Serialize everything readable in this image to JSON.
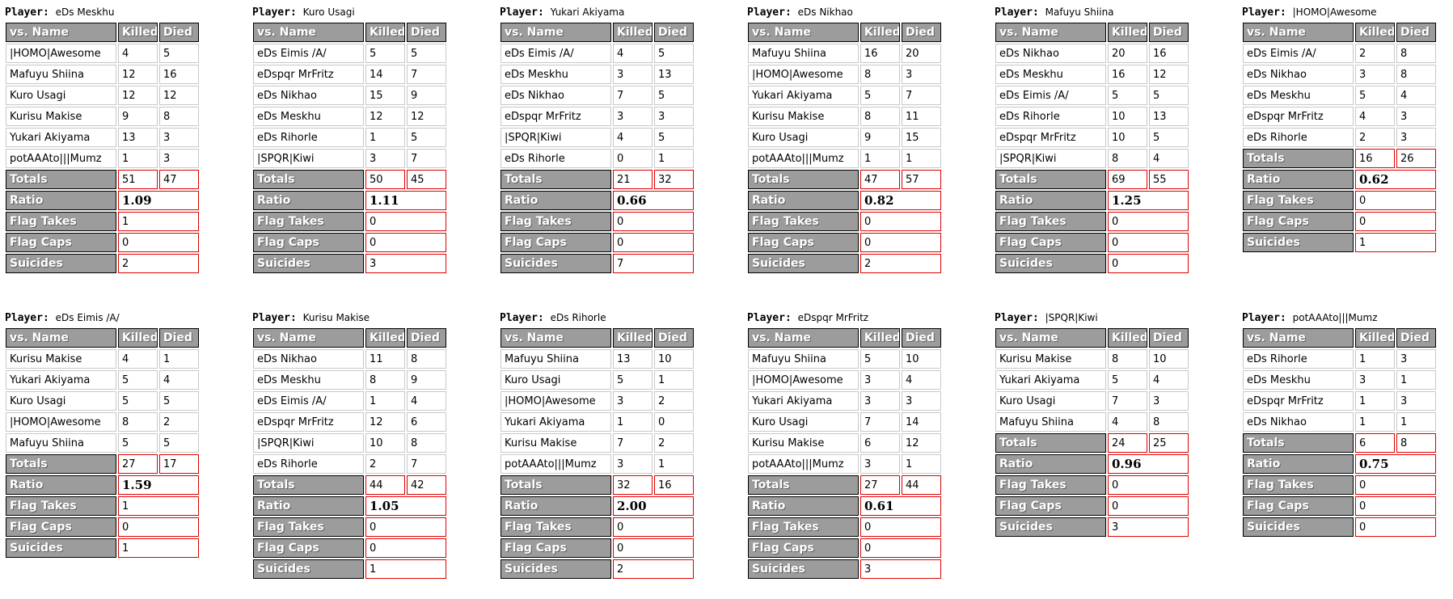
{
  "labels": {
    "player_prefix": "Player:",
    "columns": [
      "vs. Name",
      "Killed",
      "Died"
    ],
    "totals": "Totals",
    "ratio": "Ratio",
    "flag_takes": "Flag Takes",
    "flag_caps": "Flag Caps",
    "suicides": "Suicides"
  },
  "colors": {
    "header_bg": "#9c9c9c",
    "header_border": "#000000",
    "data_cell_border": "#c8c8c8",
    "highlight_border": "#dd0000",
    "text": "#000000",
    "header_text": "#ffffff"
  },
  "players": [
    {
      "name": "eDs Meskhu",
      "opponents": [
        {
          "name": "|HOMO|Awesome",
          "killed": 4,
          "died": 5
        },
        {
          "name": "Mafuyu Shiina",
          "killed": 12,
          "died": 16
        },
        {
          "name": "Kuro Usagi",
          "killed": 12,
          "died": 12
        },
        {
          "name": "Kurisu Makise",
          "killed": 9,
          "died": 8
        },
        {
          "name": "Yukari Akiyama",
          "killed": 13,
          "died": 3
        },
        {
          "name": "potAAAto|||Mumz",
          "killed": 1,
          "died": 3
        }
      ],
      "totals": {
        "killed": 51,
        "died": 47
      },
      "ratio": "1.09",
      "flag_takes": "1",
      "flag_caps": "0",
      "suicides": "2"
    },
    {
      "name": "Kuro Usagi",
      "opponents": [
        {
          "name": "eDs Eimis /A/",
          "killed": 5,
          "died": 5
        },
        {
          "name": "eDspqr MrFritz",
          "killed": 14,
          "died": 7
        },
        {
          "name": "eDs Nikhao",
          "killed": 15,
          "died": 9
        },
        {
          "name": "eDs Meskhu",
          "killed": 12,
          "died": 12
        },
        {
          "name": "eDs Rihorle",
          "killed": 1,
          "died": 5
        },
        {
          "name": "|SPQR|Kiwi",
          "killed": 3,
          "died": 7
        }
      ],
      "totals": {
        "killed": 50,
        "died": 45
      },
      "ratio": "1.11",
      "flag_takes": "0",
      "flag_caps": "0",
      "suicides": "3"
    },
    {
      "name": "Yukari Akiyama",
      "opponents": [
        {
          "name": "eDs Eimis /A/",
          "killed": 4,
          "died": 5
        },
        {
          "name": "eDs Meskhu",
          "killed": 3,
          "died": 13
        },
        {
          "name": "eDs Nikhao",
          "killed": 7,
          "died": 5
        },
        {
          "name": "eDspqr MrFritz",
          "killed": 3,
          "died": 3
        },
        {
          "name": "|SPQR|Kiwi",
          "killed": 4,
          "died": 5
        },
        {
          "name": "eDs Rihorle",
          "killed": 0,
          "died": 1
        }
      ],
      "totals": {
        "killed": 21,
        "died": 32
      },
      "ratio": "0.66",
      "flag_takes": "0",
      "flag_caps": "0",
      "suicides": "7"
    },
    {
      "name": "eDs Nikhao",
      "opponents": [
        {
          "name": "Mafuyu Shiina",
          "killed": 16,
          "died": 20
        },
        {
          "name": "|HOMO|Awesome",
          "killed": 8,
          "died": 3
        },
        {
          "name": "Yukari Akiyama",
          "killed": 5,
          "died": 7
        },
        {
          "name": "Kurisu Makise",
          "killed": 8,
          "died": 11
        },
        {
          "name": "Kuro Usagi",
          "killed": 9,
          "died": 15
        },
        {
          "name": "potAAAto|||Mumz",
          "killed": 1,
          "died": 1
        }
      ],
      "totals": {
        "killed": 47,
        "died": 57
      },
      "ratio": "0.82",
      "flag_takes": "0",
      "flag_caps": "0",
      "suicides": "2"
    },
    {
      "name": "Mafuyu Shiina",
      "opponents": [
        {
          "name": "eDs Nikhao",
          "killed": 20,
          "died": 16
        },
        {
          "name": "eDs Meskhu",
          "killed": 16,
          "died": 12
        },
        {
          "name": "eDs Eimis /A/",
          "killed": 5,
          "died": 5
        },
        {
          "name": "eDs Rihorle",
          "killed": 10,
          "died": 13
        },
        {
          "name": "eDspqr MrFritz",
          "killed": 10,
          "died": 5
        },
        {
          "name": "|SPQR|Kiwi",
          "killed": 8,
          "died": 4
        }
      ],
      "totals": {
        "killed": 69,
        "died": 55
      },
      "ratio": "1.25",
      "flag_takes": "0",
      "flag_caps": "0",
      "suicides": "0"
    },
    {
      "name": "|HOMO|Awesome",
      "opponents": [
        {
          "name": "eDs Eimis /A/",
          "killed": 2,
          "died": 8
        },
        {
          "name": "eDs Nikhao",
          "killed": 3,
          "died": 8
        },
        {
          "name": "eDs Meskhu",
          "killed": 5,
          "died": 4
        },
        {
          "name": "eDspqr MrFritz",
          "killed": 4,
          "died": 3
        },
        {
          "name": "eDs Rihorle",
          "killed": 2,
          "died": 3
        }
      ],
      "totals": {
        "killed": 16,
        "died": 26
      },
      "ratio": "0.62",
      "flag_takes": "0",
      "flag_caps": "0",
      "suicides": "1"
    },
    {
      "name": "eDs Eimis /A/",
      "opponents": [
        {
          "name": "Kurisu Makise",
          "killed": 4,
          "died": 1
        },
        {
          "name": "Yukari Akiyama",
          "killed": 5,
          "died": 4
        },
        {
          "name": "Kuro Usagi",
          "killed": 5,
          "died": 5
        },
        {
          "name": "|HOMO|Awesome",
          "killed": 8,
          "died": 2
        },
        {
          "name": "Mafuyu Shiina",
          "killed": 5,
          "died": 5
        }
      ],
      "totals": {
        "killed": 27,
        "died": 17
      },
      "ratio": "1.59",
      "flag_takes": "1",
      "flag_caps": "0",
      "suicides": "1"
    },
    {
      "name": "Kurisu Makise",
      "opponents": [
        {
          "name": "eDs Nikhao",
          "killed": 11,
          "died": 8
        },
        {
          "name": "eDs Meskhu",
          "killed": 8,
          "died": 9
        },
        {
          "name": "eDs Eimis /A/",
          "killed": 1,
          "died": 4
        },
        {
          "name": "eDspqr MrFritz",
          "killed": 12,
          "died": 6
        },
        {
          "name": "|SPQR|Kiwi",
          "killed": 10,
          "died": 8
        },
        {
          "name": "eDs Rihorle",
          "killed": 2,
          "died": 7
        }
      ],
      "totals": {
        "killed": 44,
        "died": 42
      },
      "ratio": "1.05",
      "flag_takes": "0",
      "flag_caps": "0",
      "suicides": "1"
    },
    {
      "name": "eDs Rihorle",
      "opponents": [
        {
          "name": "Mafuyu Shiina",
          "killed": 13,
          "died": 10
        },
        {
          "name": "Kuro Usagi",
          "killed": 5,
          "died": 1
        },
        {
          "name": "|HOMO|Awesome",
          "killed": 3,
          "died": 2
        },
        {
          "name": "Yukari Akiyama",
          "killed": 1,
          "died": 0
        },
        {
          "name": "Kurisu Makise",
          "killed": 7,
          "died": 2
        },
        {
          "name": "potAAAto|||Mumz",
          "killed": 3,
          "died": 1
        }
      ],
      "totals": {
        "killed": 32,
        "died": 16
      },
      "ratio": "2.00",
      "flag_takes": "0",
      "flag_caps": "0",
      "suicides": "2"
    },
    {
      "name": "eDspqr MrFritz",
      "opponents": [
        {
          "name": "Mafuyu Shiina",
          "killed": 5,
          "died": 10
        },
        {
          "name": "|HOMO|Awesome",
          "killed": 3,
          "died": 4
        },
        {
          "name": "Yukari Akiyama",
          "killed": 3,
          "died": 3
        },
        {
          "name": "Kuro Usagi",
          "killed": 7,
          "died": 14
        },
        {
          "name": "Kurisu Makise",
          "killed": 6,
          "died": 12
        },
        {
          "name": "potAAAto|||Mumz",
          "killed": 3,
          "died": 1
        }
      ],
      "totals": {
        "killed": 27,
        "died": 44
      },
      "ratio": "0.61",
      "flag_takes": "0",
      "flag_caps": "0",
      "suicides": "3"
    },
    {
      "name": "|SPQR|Kiwi",
      "opponents": [
        {
          "name": "Kurisu Makise",
          "killed": 8,
          "died": 10
        },
        {
          "name": "Yukari Akiyama",
          "killed": 5,
          "died": 4
        },
        {
          "name": "Kuro Usagi",
          "killed": 7,
          "died": 3
        },
        {
          "name": "Mafuyu Shiina",
          "killed": 4,
          "died": 8
        }
      ],
      "totals": {
        "killed": 24,
        "died": 25
      },
      "ratio": "0.96",
      "flag_takes": "0",
      "flag_caps": "0",
      "suicides": "3"
    },
    {
      "name": "potAAAto|||Mumz",
      "opponents": [
        {
          "name": "eDs Rihorle",
          "killed": 1,
          "died": 3
        },
        {
          "name": "eDs Meskhu",
          "killed": 3,
          "died": 1
        },
        {
          "name": "eDspqr MrFritz",
          "killed": 1,
          "died": 3
        },
        {
          "name": "eDs Nikhao",
          "killed": 1,
          "died": 1
        }
      ],
      "totals": {
        "killed": 6,
        "died": 8
      },
      "ratio": "0.75",
      "flag_takes": "0",
      "flag_caps": "0",
      "suicides": "0"
    }
  ]
}
